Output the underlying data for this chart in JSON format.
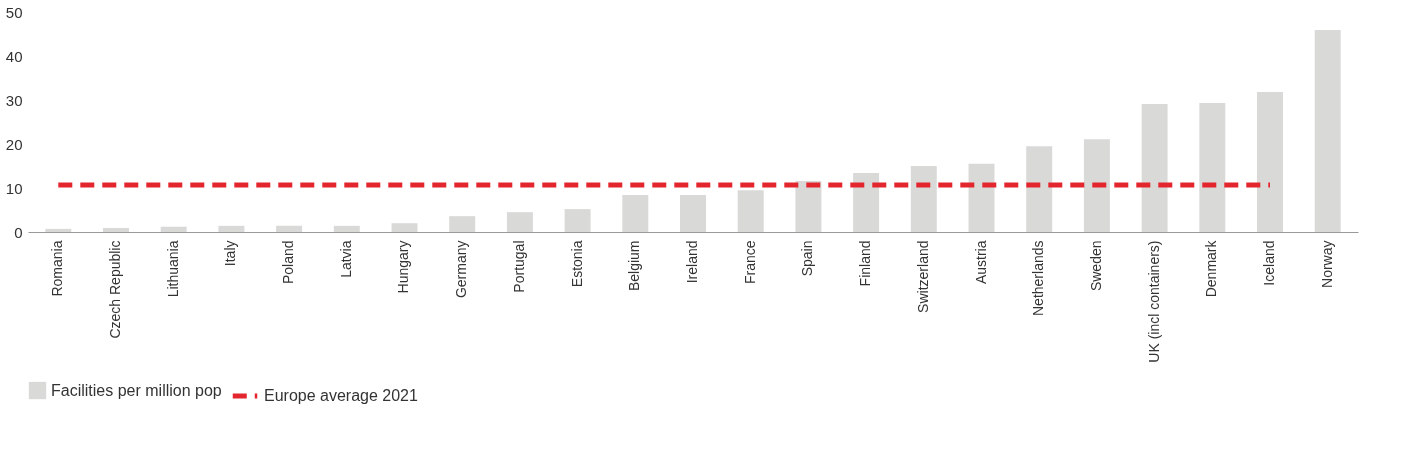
{
  "chart_data": {
    "type": "bar",
    "categories": [
      "Romania",
      "Czech Republic",
      "Lithuania",
      "Italy",
      "Poland",
      "Latvia",
      "Hungary",
      "Germany",
      "Portugal",
      "Estonia",
      "Belgium",
      "Ireland",
      "France",
      "Spain",
      "Finland",
      "Switzerland",
      "Austria",
      "Netherlands",
      "Sweden",
      "UK (incl containers)",
      "Denmark",
      "Iceland",
      "Norway"
    ],
    "series": [
      {
        "name": "Facilities per million pop",
        "color": "#d9d9d8",
        "values": [
          0.7,
          0.9,
          1.2,
          1.4,
          1.4,
          1.4,
          2.0,
          3.6,
          4.5,
          5.2,
          8.4,
          8.4,
          9.5,
          11.6,
          13.4,
          15.0,
          15.5,
          19.5,
          21.1,
          29.1,
          29.3,
          31.8,
          45.9
        ]
      },
      {
        "name": "Europe average 2021",
        "color": "#e3262e",
        "type": "line",
        "line_style": "dashed",
        "values": [
          10.7,
          10.7,
          10.7,
          10.7,
          10.7,
          10.7,
          10.7,
          10.7,
          10.7,
          10.7,
          10.7,
          10.7,
          10.7,
          10.7,
          10.7,
          10.7,
          10.7,
          10.7,
          10.7,
          10.7,
          10.7,
          10.7,
          null
        ]
      }
    ],
    "ylim": [
      0,
      50
    ],
    "yticks": [
      0,
      10,
      20,
      30,
      40,
      50
    ],
    "grid": false,
    "legend": "bottom"
  }
}
